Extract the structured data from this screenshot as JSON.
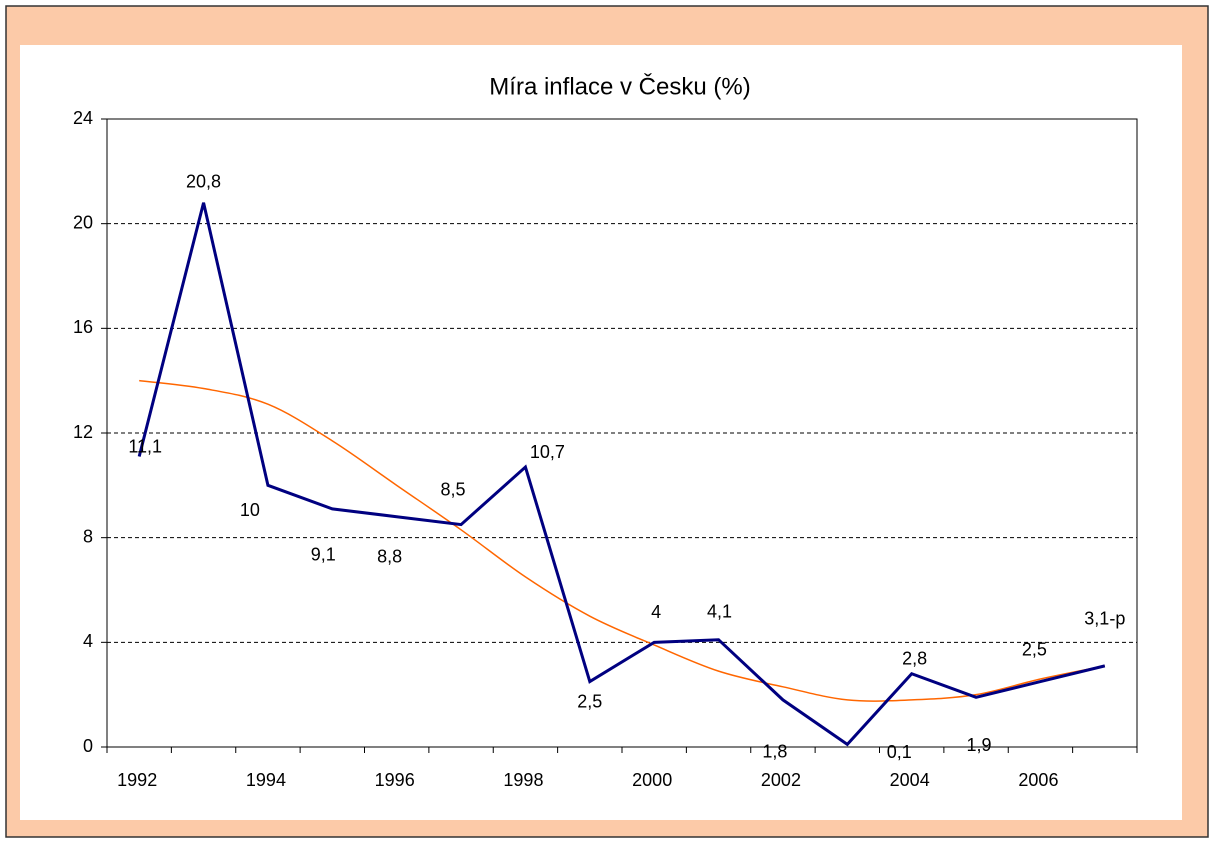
{
  "chart_data": {
    "type": "line",
    "title": "Míra inflace v Česku (%)",
    "categories": [
      "1992",
      null,
      "1994",
      null,
      "1996",
      null,
      "1998",
      null,
      "2000",
      null,
      "2002",
      null,
      "2004",
      null,
      "2006",
      null
    ],
    "series": [
      {
        "color": "#000080",
        "values": [
          11.1,
          20.8,
          10,
          9.1,
          8.8,
          8.5,
          10.7,
          2.5,
          4,
          4.1,
          1.8,
          0.1,
          2.8,
          1.9,
          2.5,
          3.1
        ],
        "value_labels": [
          "11,1",
          "20,8",
          "10",
          "9,1",
          "8,8",
          "8,5",
          "10,7",
          "2,5",
          "4",
          "4,1",
          "1,8",
          "0,1",
          "2,8",
          "1,9",
          "2,5",
          "3,1-p"
        ]
      },
      {
        "color": "#ff6600",
        "values": [
          14.0,
          13.7,
          13.1,
          11.7,
          10.0,
          8.3,
          6.5,
          5.0,
          3.9,
          2.9,
          2.3,
          1.8,
          1.8,
          2.0,
          2.6,
          3.1
        ]
      }
    ],
    "ylim": [
      0,
      24
    ],
    "yticks": [
      0,
      4,
      8,
      12,
      16,
      20,
      24
    ],
    "grid": true
  }
}
